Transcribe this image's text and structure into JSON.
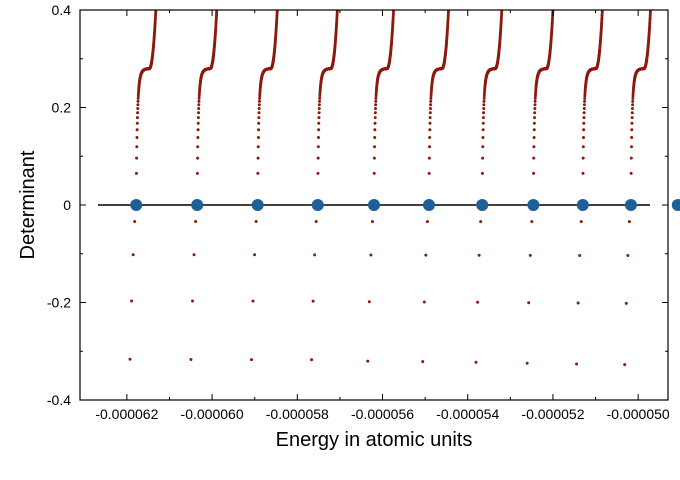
{
  "chart_data": {
    "type": "scatter",
    "title": "",
    "xlabel": "Energy in atomic units",
    "ylabel": "Determinant",
    "xlim": [
      -6.31e-05,
      -4.93e-05
    ],
    "ylim": [
      -0.4,
      0.4
    ],
    "grid": false,
    "x_ticks": [
      -6.2e-05,
      -6e-05,
      -5.8e-05,
      -5.6e-05,
      -5.4e-05,
      -5.2e-05,
      -5e-05
    ],
    "x_tick_labels": [
      "-0.000062",
      "-0.000060",
      "-0.000058",
      "-0.000056",
      "-0.000054",
      "-0.000052",
      "-0.000050"
    ],
    "y_ticks": [
      -0.4,
      -0.2,
      0,
      0.2,
      0.4
    ],
    "y_tick_labels": [
      "-0.4",
      "-0.2",
      "0",
      "0.2",
      "0.4"
    ],
    "zero_line": true,
    "roots": [
      -6.178e-05,
      -6.035e-05,
      -5.893e-05,
      -5.752e-05,
      -5.62e-05,
      -5.491e-05,
      -5.366e-05,
      -5.246e-05,
      -5.13e-05,
      -5.017e-05,
      -4.907e-05
    ],
    "colors": {
      "determinant_points": "#8b1a0e",
      "roots": "#1f5f99",
      "axes": "#000000"
    }
  }
}
